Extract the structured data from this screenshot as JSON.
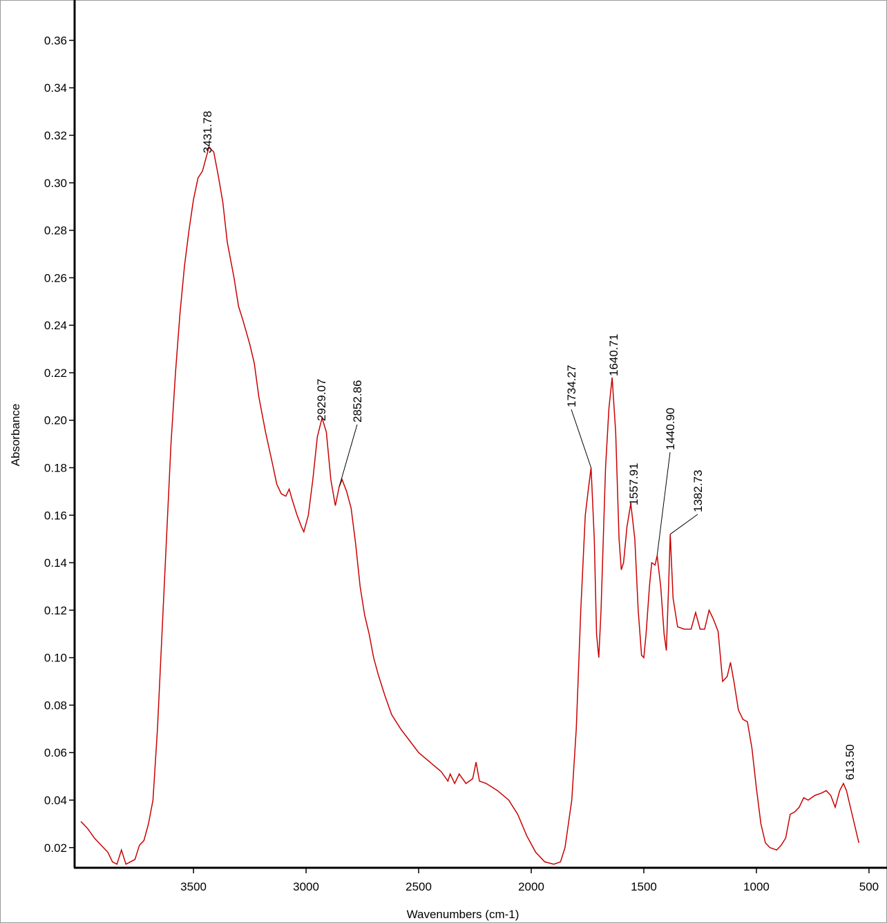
{
  "chart_data": {
    "type": "line",
    "xlabel": "Wavenumbers (cm-1)",
    "ylabel": "Absorbance",
    "xlim": [
      4028,
      420
    ],
    "ylim": [
      0.0115,
      0.377
    ],
    "xticks": [
      3500,
      3000,
      2500,
      2000,
      1500,
      1000,
      500
    ],
    "yticks": [
      0.02,
      0.04,
      0.06,
      0.08,
      {
        "value": 0.1,
        "label": "0.10"
      },
      0.12,
      0.14,
      0.16,
      0.18,
      {
        "value": 0.2,
        "label": "0.20"
      },
      0.22,
      0.24,
      0.26,
      0.28,
      {
        "value": 0.3,
        "label": "0.30"
      },
      0.32,
      0.34,
      0.36
    ],
    "series": [
      {
        "color": "#c80000",
        "x": [
          4000,
          3970,
          3940,
          3910,
          3880,
          3860,
          3840,
          3820,
          3800,
          3780,
          3760,
          3740,
          3720,
          3700,
          3680,
          3660,
          3640,
          3620,
          3600,
          3580,
          3560,
          3540,
          3520,
          3500,
          3480,
          3460,
          3440,
          3431.78,
          3410,
          3390,
          3370,
          3350,
          3320,
          3300,
          3280,
          3250,
          3230,
          3210,
          3180,
          3150,
          3130,
          3110,
          3090,
          3075,
          3060,
          3040,
          3020,
          3010,
          2990,
          2970,
          2950,
          2929.07,
          2910,
          2890,
          2870,
          2852.86,
          2840,
          2820,
          2800,
          2780,
          2760,
          2740,
          2720,
          2700,
          2680,
          2650,
          2620,
          2580,
          2540,
          2500,
          2450,
          2400,
          2370,
          2360,
          2340,
          2320,
          2290,
          2260,
          2245,
          2230,
          2200,
          2150,
          2100,
          2060,
          2020,
          1980,
          1940,
          1900,
          1870,
          1850,
          1820,
          1800,
          1780,
          1760,
          1745,
          1734.27,
          1720,
          1710,
          1700,
          1690,
          1670,
          1655,
          1640.71,
          1625,
          1610,
          1600,
          1590,
          1575,
          1557.91,
          1540,
          1525,
          1510,
          1500,
          1490,
          1475,
          1465,
          1450,
          1440.9,
          1425,
          1410,
          1400,
          1390,
          1382.73,
          1370,
          1350,
          1320,
          1290,
          1270,
          1250,
          1230,
          1210,
          1190,
          1170,
          1150,
          1130,
          1115,
          1100,
          1080,
          1060,
          1040,
          1020,
          1000,
          980,
          960,
          940,
          910,
          890,
          870,
          850,
          830,
          810,
          790,
          770,
          740,
          710,
          690,
          670,
          650,
          630,
          613.5,
          600,
          580,
          560,
          545
        ],
        "values": [
          0.031,
          0.028,
          0.024,
          0.021,
          0.018,
          0.014,
          0.013,
          0.019,
          0.013,
          0.014,
          0.015,
          0.021,
          0.023,
          0.03,
          0.04,
          0.07,
          0.11,
          0.15,
          0.19,
          0.22,
          0.245,
          0.265,
          0.28,
          0.293,
          0.302,
          0.305,
          0.312,
          0.315,
          0.313,
          0.303,
          0.292,
          0.275,
          0.26,
          0.248,
          0.242,
          0.232,
          0.224,
          0.21,
          0.195,
          0.182,
          0.173,
          0.169,
          0.168,
          0.171,
          0.166,
          0.16,
          0.155,
          0.153,
          0.16,
          0.175,
          0.193,
          0.201,
          0.195,
          0.175,
          0.164,
          0.172,
          0.175,
          0.17,
          0.163,
          0.148,
          0.13,
          0.118,
          0.11,
          0.1,
          0.093,
          0.084,
          0.076,
          0.07,
          0.065,
          0.06,
          0.056,
          0.052,
          0.048,
          0.051,
          0.047,
          0.051,
          0.047,
          0.049,
          0.056,
          0.048,
          0.047,
          0.044,
          0.04,
          0.034,
          0.025,
          0.018,
          0.014,
          0.013,
          0.014,
          0.02,
          0.04,
          0.07,
          0.12,
          0.16,
          0.172,
          0.18,
          0.15,
          0.11,
          0.1,
          0.12,
          0.18,
          0.205,
          0.218,
          0.195,
          0.15,
          0.137,
          0.14,
          0.155,
          0.165,
          0.15,
          0.12,
          0.101,
          0.1,
          0.11,
          0.13,
          0.14,
          0.139,
          0.143,
          0.13,
          0.11,
          0.103,
          0.13,
          0.152,
          0.125,
          0.113,
          0.112,
          0.112,
          0.119,
          0.112,
          0.112,
          0.12,
          0.116,
          0.111,
          0.09,
          0.092,
          0.098,
          0.09,
          0.078,
          0.074,
          0.073,
          0.062,
          0.045,
          0.03,
          0.022,
          0.02,
          0.019,
          0.021,
          0.024,
          0.034,
          0.035,
          0.037,
          0.041,
          0.04,
          0.042,
          0.043,
          0.044,
          0.042,
          0.037,
          0.044,
          0.047,
          0.044,
          0.036,
          0.028,
          0.022
        ]
      }
    ],
    "annotations": [
      {
        "text": "3431.78",
        "x": 3431.78,
        "y": 0.315
      },
      {
        "text": "2929.07",
        "x": 2929.07,
        "y": 0.201
      },
      {
        "text": "2852.86",
        "x": 2852.86,
        "y": 0.172
      },
      {
        "text": "1734.27",
        "x": 1734.27,
        "y": 0.18
      },
      {
        "text": "1640.71",
        "x": 1640.71,
        "y": 0.218
      },
      {
        "text": "1557.91",
        "x": 1557.91,
        "y": 0.165
      },
      {
        "text": "1440.90",
        "x": 1440.9,
        "y": 0.143
      },
      {
        "text": "1382.73",
        "x": 1382.73,
        "y": 0.152
      },
      {
        "text": "613.50",
        "x": 613.5,
        "y": 0.047
      }
    ]
  }
}
